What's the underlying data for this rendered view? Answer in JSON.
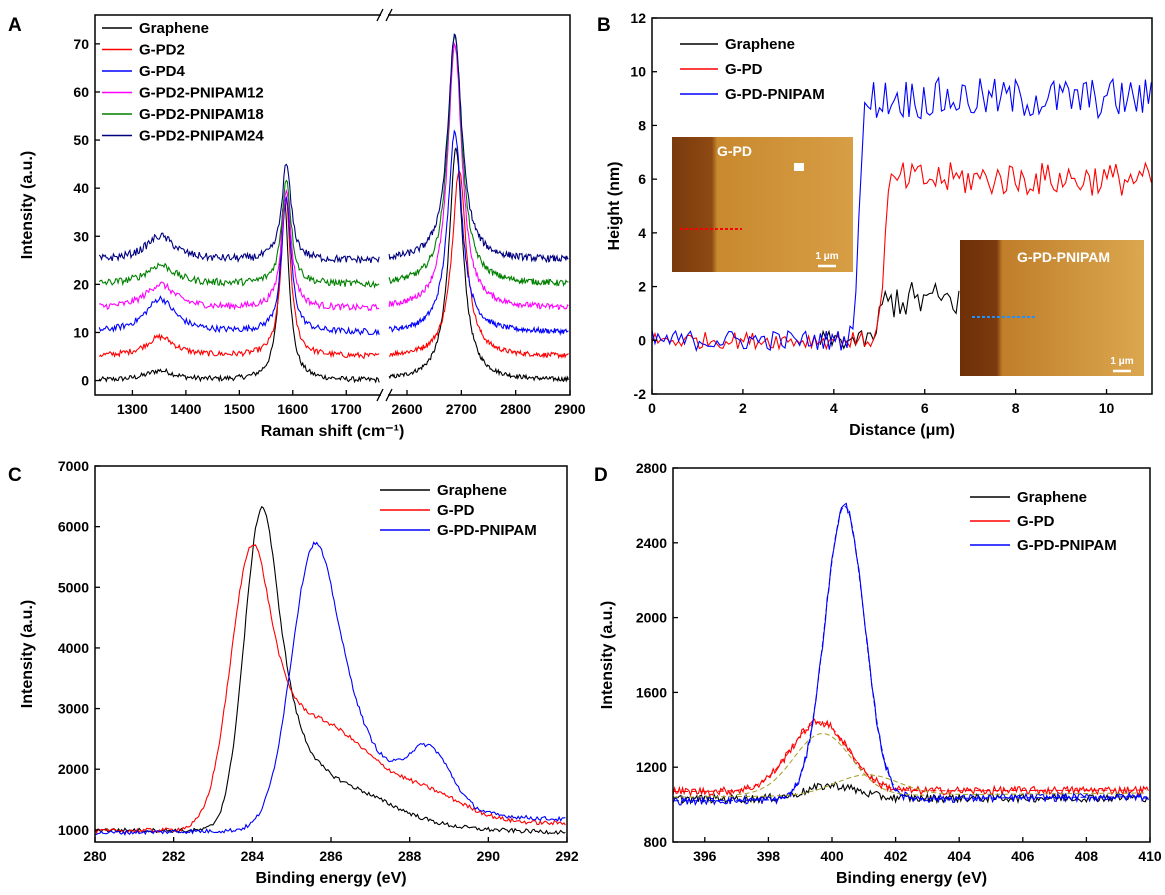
{
  "chart_data": [
    {
      "panel": "A",
      "type": "line",
      "xlabel": "Raman shift (cm⁻¹)",
      "ylabel": "Intensity (a.u.)",
      "xlim_left": [
        1230,
        1765
      ],
      "xlim_right": [
        2565,
        2900
      ],
      "axis_break": true,
      "xticks": [
        1300,
        1400,
        1500,
        1600,
        1700,
        2600,
        2700,
        2800,
        2900
      ],
      "ylim": [
        -3,
        76
      ],
      "yticks": [
        0,
        10,
        20,
        30,
        40,
        50,
        60,
        70
      ],
      "legend": "top-left",
      "series": [
        {
          "name": "Graphene",
          "color": "#000000",
          "baseline": 0,
          "d_peak": 2,
          "g_peak": 38,
          "g_center": 1584,
          "two_d_peak": 48
        },
        {
          "name": "G-PD2",
          "color": "#ff0000",
          "baseline": 5,
          "d_peak": 9,
          "g_peak": 38,
          "g_center": 1587,
          "two_d_peak": 44
        },
        {
          "name": "G-PD4",
          "color": "#0000ff",
          "baseline": 10,
          "d_peak": 17,
          "g_peak": 38,
          "g_center": 1588,
          "two_d_peak": 52
        },
        {
          "name": "G-PD2-PNIPAM12",
          "color": "#ff00ff",
          "baseline": 15,
          "d_peak": 20,
          "g_peak": 40,
          "g_center": 1588,
          "two_d_peak": 70
        },
        {
          "name": "G-PD2-PNIPAM18",
          "color": "#008000",
          "baseline": 20,
          "d_peak": 24,
          "g_peak": 42,
          "g_center": 1588,
          "two_d_peak": 72
        },
        {
          "name": "G-PD2-PNIPAM24",
          "color": "#000080",
          "baseline": 25,
          "d_peak": 30,
          "g_peak": 45,
          "g_center": 1588,
          "two_d_peak": 72
        }
      ]
    },
    {
      "panel": "B",
      "type": "line",
      "xlabel": "Distance (μm)",
      "ylabel": "Height (nm)",
      "xlim": [
        0,
        11
      ],
      "ylim": [
        -2,
        12
      ],
      "xticks": [
        0,
        2,
        4,
        6,
        8,
        10
      ],
      "yticks": [
        -2,
        0,
        2,
        4,
        6,
        8,
        10,
        12
      ],
      "legend": "top-left",
      "series": [
        {
          "name": "Graphene",
          "color": "#000000",
          "x_range": [
            3.7,
            6.8
          ],
          "step_at": 5.0,
          "low": 0,
          "high": 1.5
        },
        {
          "name": "G-PD",
          "color": "#ff0000",
          "x_range": [
            0,
            11
          ],
          "step_at": 5.1,
          "low": 0,
          "high": 6
        },
        {
          "name": "G-PD-PNIPAM",
          "color": "#0000ff",
          "x_range": [
            0,
            11
          ],
          "step_at": 4.55,
          "low": 0,
          "high": 9
        }
      ],
      "insets": [
        {
          "label": "G-PD",
          "scale_bar": "1 μm",
          "line_color": "#ff0000"
        },
        {
          "label": "G-PD-PNIPAM",
          "scale_bar": "1 μm",
          "line_color": "#1e90ff"
        }
      ]
    },
    {
      "panel": "C",
      "type": "line",
      "xlabel": "Binding energy (eV)",
      "ylabel": "Intensity (a.u.)",
      "xlim": [
        280,
        292
      ],
      "ylim": [
        800,
        7000
      ],
      "xticks": [
        280,
        282,
        284,
        286,
        288,
        290,
        292
      ],
      "yticks": [
        1000,
        2000,
        3000,
        4000,
        5000,
        6000,
        7000
      ],
      "legend": "top-right",
      "series": [
        {
          "name": "Graphene",
          "color": "#000000",
          "peak_x": 284.25,
          "peak_y": 6280
        },
        {
          "name": "G-PD",
          "color": "#ff0000",
          "peak_x": 284.0,
          "peak_y": 5480,
          "shoulder_x": 286.0,
          "shoulder_y": 2350
        },
        {
          "name": "G-PD-PNIPAM",
          "color": "#0000ff",
          "peak_x": 285.6,
          "peak_y": 5720,
          "shoulder_x": 288.5,
          "shoulder_y": 2150
        }
      ]
    },
    {
      "panel": "D",
      "type": "line",
      "xlabel": "Binding energy (eV)",
      "ylabel": "Intensity (a.u.)",
      "xlim": [
        395,
        410
      ],
      "ylim": [
        800,
        2800
      ],
      "xticks": [
        396,
        398,
        400,
        402,
        404,
        406,
        408,
        410
      ],
      "yticks": [
        800,
        1200,
        1600,
        2000,
        2400,
        2800
      ],
      "legend": "top-right",
      "series": [
        {
          "name": "Graphene",
          "color": "#000000",
          "peak_x": 400.0,
          "peak_y": 1100,
          "baseline": 1030
        },
        {
          "name": "G-PD",
          "color": "#ff0000",
          "peak_x": 399.6,
          "peak_y": 1440,
          "baseline": 1070
        },
        {
          "name": "G-PD-PNIPAM",
          "color": "#0000ff",
          "peak_x": 400.4,
          "peak_y": 2590,
          "baseline": 1020
        }
      ]
    }
  ]
}
